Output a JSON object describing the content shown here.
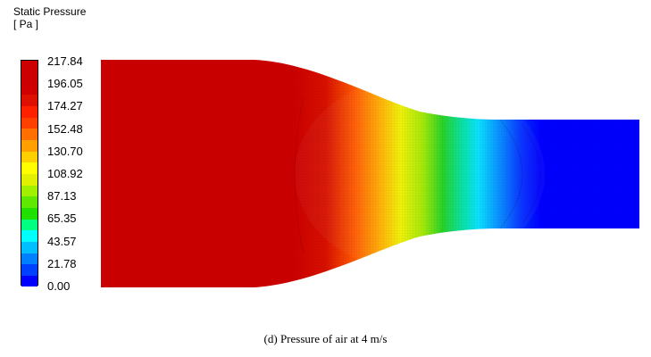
{
  "legend": {
    "title_line1": "Static Pressure",
    "title_line2": "[ Pa ]",
    "ticks": [
      "217.84",
      "196.05",
      "174.27",
      "152.48",
      "130.70",
      "108.92",
      "87.13",
      "65.35",
      "43.57",
      "21.78",
      "0.00"
    ],
    "colors": [
      "#0000ff",
      "#0040ff",
      "#0080ff",
      "#00bfff",
      "#00ffff",
      "#00ff80",
      "#20e000",
      "#60e800",
      "#a0f000",
      "#e0f000",
      "#ffff00",
      "#ffd000",
      "#ffa000",
      "#ff7000",
      "#ff4000",
      "#ff2000",
      "#e01000",
      "#d00000",
      "#cc0000",
      "#cc0000"
    ]
  },
  "caption": "(d) Pressure of air at 4 m/s"
}
